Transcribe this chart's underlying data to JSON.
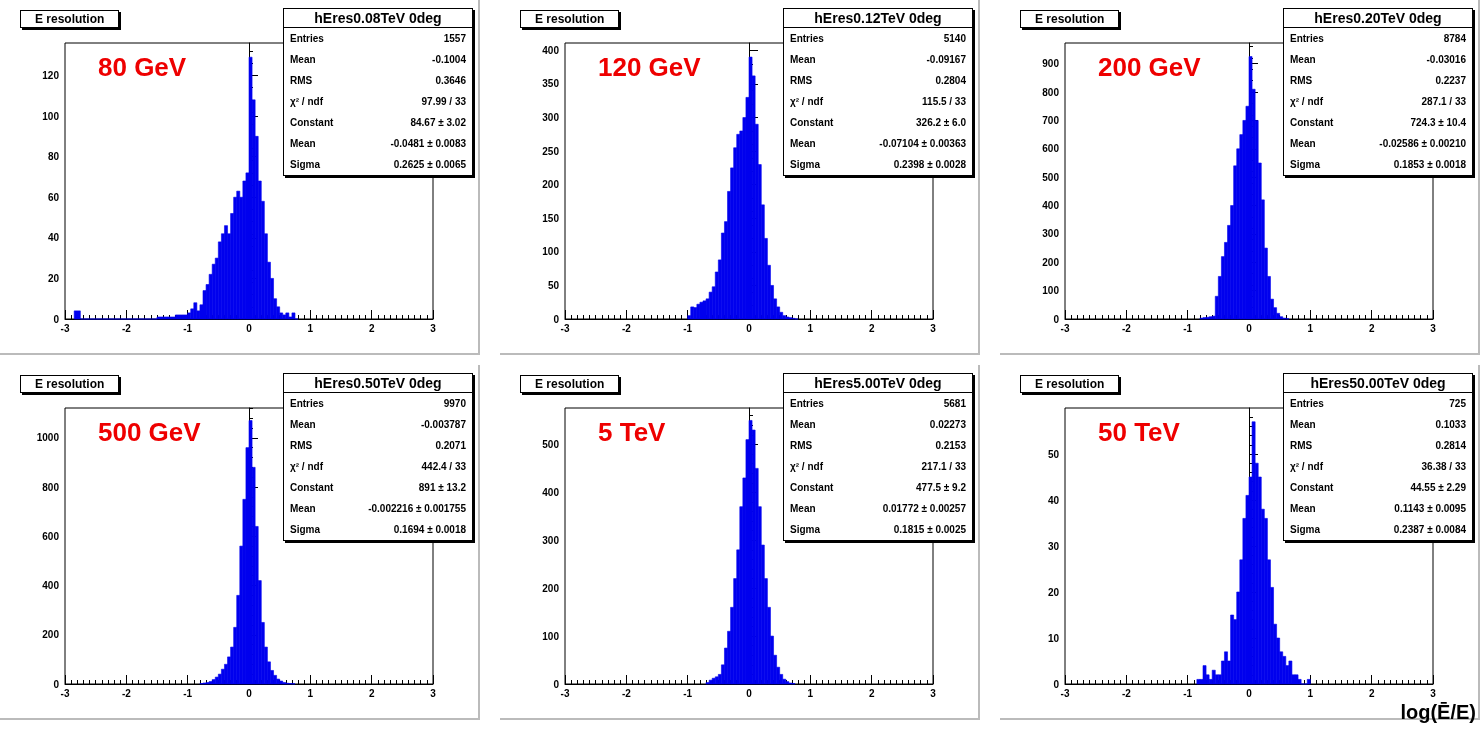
{
  "chart_data": [
    {
      "type": "histogram",
      "title": "E resolution",
      "subtitle": "hEres0.08TeV 0deg",
      "color": "#0000ee",
      "annotations": [
        "80 GeV",
        "Entries",
        "1557",
        "Mean",
        "-0.1004",
        "RMS",
        "0.3646",
        "χ² / ndf",
        "97.99 / 33",
        "Constant",
        "84.67 ± 3.02",
        "Mean",
        "-0.0481 ± 0.0083",
        "Sigma",
        "0.2625 ± 0.0065"
      ],
      "bins": [
        -2.85,
        -2.75,
        -1.5,
        -1.4,
        -1.3,
        -1.2,
        -1.1,
        -1,
        -0.95,
        -0.9,
        -0.85,
        -0.8,
        -0.75,
        -0.7,
        -0.65,
        -0.6,
        -0.55,
        -0.5,
        -0.45,
        -0.4,
        -0.35,
        -0.3,
        -0.25,
        -0.2,
        -0.15,
        -0.1,
        -0.05,
        0,
        0.05,
        0.1,
        0.15,
        0.2,
        0.25,
        0.3,
        0.35,
        0.4,
        0.45,
        0.5,
        0.55,
        0.6,
        0.65,
        0.7,
        0.75,
        0.8
      ],
      "values": [
        4,
        0,
        1,
        1,
        1,
        2,
        2,
        3,
        5,
        8,
        4,
        7,
        14,
        17,
        22,
        27,
        30,
        38,
        42,
        46,
        42,
        52,
        60,
        63,
        60,
        68,
        72,
        129,
        108,
        90,
        68,
        58,
        42,
        28,
        20,
        10,
        6,
        3,
        2,
        3,
        1,
        3,
        0
      ],
      "xlim": [
        -3,
        3
      ],
      "xticks": [
        -3,
        -2,
        -1,
        0,
        1,
        2,
        3
      ],
      "ylim": [
        0,
        136
      ],
      "yticks": [
        0,
        20,
        40,
        60,
        80,
        100,
        120
      ]
    },
    {
      "type": "histogram",
      "title": "E resolution",
      "subtitle": "hEres0.12TeV 0deg",
      "color": "#0000ee",
      "annotations": [
        "120 GeV",
        "Entries",
        "5140",
        "Mean",
        "-0.09167",
        "RMS",
        "0.2804",
        "χ² / ndf",
        "115.5 / 33",
        "Constant",
        "326.2 ± 6.0",
        "Mean",
        "-0.07104 ± 0.00363",
        "Sigma",
        "0.2398 ± 0.0028"
      ],
      "bins": [
        -1,
        -0.95,
        -0.9,
        -0.85,
        -0.8,
        -0.75,
        -0.7,
        -0.65,
        -0.6,
        -0.55,
        -0.5,
        -0.45,
        -0.4,
        -0.35,
        -0.3,
        -0.25,
        -0.2,
        -0.15,
        -0.1,
        -0.05,
        0,
        0.05,
        0.1,
        0.15,
        0.2,
        0.25,
        0.3,
        0.35,
        0.4,
        0.45,
        0.5,
        0.55,
        0.6,
        0.65,
        0.7,
        0.75,
        0.8
      ],
      "values": [
        5,
        18,
        17,
        22,
        25,
        27,
        30,
        40,
        48,
        70,
        88,
        128,
        145,
        190,
        225,
        255,
        275,
        280,
        300,
        330,
        390,
        362,
        290,
        230,
        170,
        120,
        80,
        50,
        30,
        18,
        10,
        5,
        3,
        2,
        1,
        0
      ],
      "xlim": [
        -3,
        3
      ],
      "xticks": [
        -3,
        -2,
        -1,
        0,
        1,
        2,
        3
      ],
      "ylim": [
        0,
        411
      ],
      "yticks": [
        0,
        50,
        100,
        150,
        200,
        250,
        300,
        350,
        400
      ]
    },
    {
      "type": "histogram",
      "title": "E resolution",
      "subtitle": "hEres0.20TeV 0deg",
      "color": "#0000ee",
      "annotations": [
        "200 GeV",
        "Entries",
        "8784",
        "Mean",
        "-0.03016",
        "RMS",
        "0.2237",
        "χ² / ndf",
        "287.1 / 33",
        "Constant",
        "724.3 ± 10.4",
        "Mean",
        "-0.02586 ± 0.00210",
        "Sigma",
        "0.1853 ± 0.0018"
      ],
      "bins": [
        -0.8,
        -0.75,
        -0.7,
        -0.65,
        -0.6,
        -0.55,
        -0.5,
        -0.45,
        -0.4,
        -0.35,
        -0.3,
        -0.25,
        -0.2,
        -0.15,
        -0.1,
        -0.05,
        0,
        0.05,
        0.1,
        0.15,
        0.2,
        0.25,
        0.3,
        0.35,
        0.4,
        0.45,
        0.5,
        0.55,
        0.6,
        0.65
      ],
      "values": [
        3,
        5,
        6,
        8,
        10,
        80,
        150,
        220,
        270,
        330,
        400,
        540,
        600,
        650,
        700,
        750,
        925,
        810,
        700,
        550,
        420,
        250,
        150,
        70,
        40,
        20,
        8,
        3,
        1
      ],
      "xlim": [
        -3,
        3
      ],
      "xticks": [
        -3,
        -2,
        -1,
        0,
        1,
        2,
        3
      ],
      "ylim": [
        0,
        973
      ],
      "yticks": [
        0,
        100,
        200,
        300,
        400,
        500,
        600,
        700,
        800,
        900
      ]
    },
    {
      "type": "histogram",
      "title": "E resolution",
      "subtitle": "hEres0.50TeV 0deg",
      "color": "#0000ee",
      "annotations": [
        "500 GeV",
        "Entries",
        "9970",
        "Mean",
        "-0.003787",
        "RMS",
        "0.2071",
        "χ² / ndf",
        "442.4 / 33",
        "Constant",
        "891 ± 13.2",
        "Mean",
        "-0.002216 ± 0.001755",
        "Sigma",
        "0.1694 ± 0.0018"
      ],
      "bins": [
        -0.8,
        -0.75,
        -0.7,
        -0.65,
        -0.6,
        -0.55,
        -0.5,
        -0.45,
        -0.4,
        -0.35,
        -0.3,
        -0.25,
        -0.2,
        -0.15,
        -0.1,
        -0.05,
        0,
        0.05,
        0.1,
        0.15,
        0.2,
        0.25,
        0.3,
        0.35,
        0.4,
        0.45,
        0.5,
        0.55,
        0.6,
        0.65,
        0.7,
        0.75
      ],
      "values": [
        2,
        4,
        6,
        10,
        18,
        28,
        40,
        60,
        80,
        110,
        150,
        230,
        360,
        560,
        750,
        960,
        1070,
        880,
        640,
        420,
        250,
        150,
        90,
        55,
        35,
        20,
        12,
        6,
        3,
        2,
        1
      ],
      "xlim": [
        -3,
        3
      ],
      "xticks": [
        -3,
        -2,
        -1,
        0,
        1,
        2,
        3
      ],
      "ylim": [
        0,
        1121
      ],
      "yticks": [
        0,
        200,
        400,
        600,
        800,
        {
          "value": 1000,
          "label": "1000"
        }
      ]
    },
    {
      "type": "histogram",
      "title": "E resolution",
      "subtitle": "hEres5.00TeV 0deg",
      "color": "#0000ee",
      "annotations": [
        "5 TeV",
        "Entries",
        "5681",
        "Mean",
        "0.02273",
        "RMS",
        "0.2153",
        "χ² / ndf",
        "217.1 / 33",
        "Constant",
        "477.5 ± 9.2",
        "Mean",
        "0.01772 ± 0.00257",
        "Sigma",
        "0.1815 ± 0.0025"
      ],
      "bins": [
        -0.7,
        -0.65,
        -0.6,
        -0.55,
        -0.5,
        -0.45,
        -0.4,
        -0.35,
        -0.3,
        -0.25,
        -0.2,
        -0.15,
        -0.1,
        -0.05,
        0,
        0.05,
        0.1,
        0.15,
        0.2,
        0.25,
        0.3,
        0.35,
        0.4,
        0.45,
        0.5,
        0.55,
        0.6,
        0.65,
        0.7,
        0.75
      ],
      "values": [
        3,
        8,
        12,
        15,
        20,
        40,
        75,
        110,
        160,
        220,
        280,
        370,
        430,
        510,
        550,
        530,
        450,
        370,
        290,
        220,
        160,
        100,
        60,
        35,
        20,
        10,
        5,
        2,
        1
      ],
      "xlim": [
        -3,
        3
      ],
      "xticks": [
        -3,
        -2,
        -1,
        0,
        1,
        2,
        3
      ],
      "ylim": [
        0,
        576
      ],
      "yticks": [
        0,
        100,
        200,
        300,
        400,
        500
      ]
    },
    {
      "type": "histogram",
      "title": "E resolution",
      "subtitle": "hEres50.00TeV 0deg",
      "color": "#0000ee",
      "xlabel": "log(Ē/E)",
      "annotations": [
        "50 TeV",
        "Entries",
        "725",
        "Mean",
        "0.1033",
        "RMS",
        "0.2814",
        "χ² / ndf",
        "36.38 / 33",
        "Constant",
        "44.55 ± 2.29",
        "Mean",
        "0.1143 ± 0.0095",
        "Sigma",
        "0.2387 ± 0.0084"
      ],
      "bins": [
        -0.85,
        -0.8,
        -0.75,
        -0.7,
        -0.65,
        -0.6,
        -0.55,
        -0.5,
        -0.45,
        -0.4,
        -0.35,
        -0.3,
        -0.25,
        -0.2,
        -0.15,
        -0.1,
        -0.05,
        0,
        0.05,
        0.1,
        0.15,
        0.2,
        0.25,
        0.3,
        0.35,
        0.4,
        0.45,
        0.5,
        0.55,
        0.6,
        0.65,
        0.7,
        0.75,
        0.8,
        0.85,
        0.9,
        0.95,
        1
      ],
      "values": [
        1,
        1,
        4,
        2,
        1,
        3,
        2,
        2,
        5,
        7,
        5,
        15,
        14,
        20,
        27,
        36,
        41,
        45,
        57,
        48,
        45,
        38,
        36,
        27,
        21,
        13,
        10,
        7,
        6,
        4,
        5,
        2,
        2,
        1,
        0,
        0,
        1
      ],
      "xlim": [
        -3,
        3
      ],
      "xticks": [
        -3,
        -2,
        -1,
        0,
        1,
        2,
        3
      ],
      "ylim": [
        0,
        60
      ],
      "yticks": [
        0,
        10,
        20,
        30,
        40,
        50
      ]
    }
  ]
}
